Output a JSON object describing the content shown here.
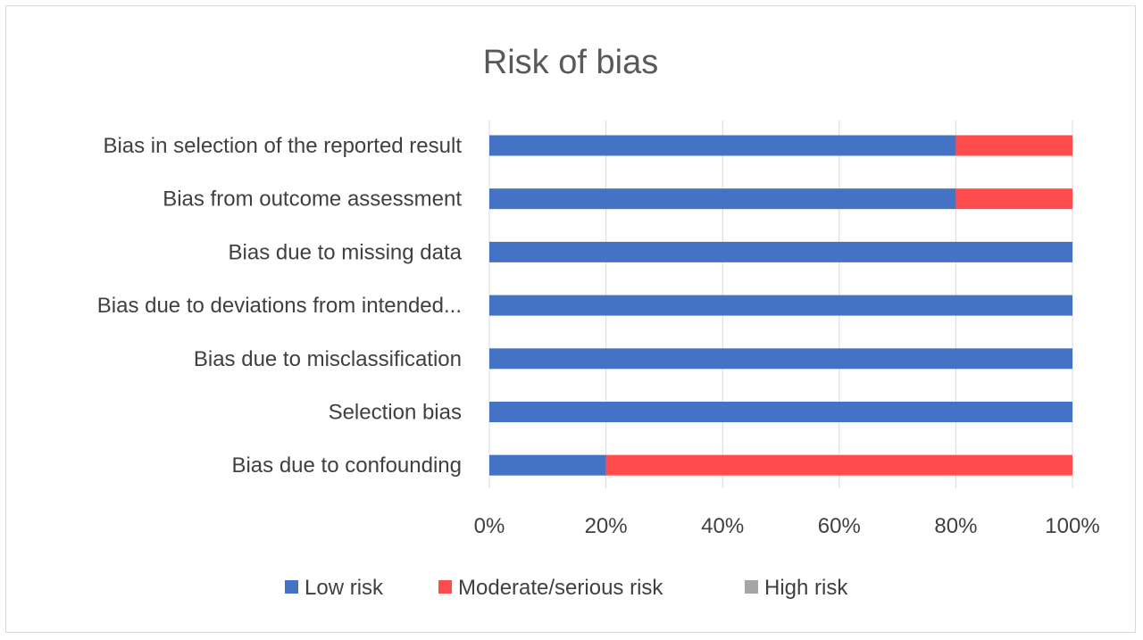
{
  "chart_data": {
    "type": "bar",
    "orientation": "horizontal",
    "stacked": true,
    "title": "Risk of bias",
    "categories": [
      "Bias in selection of the reported result",
      "Bias from outcome assessment",
      "Bias due to missing data",
      "Bias due to deviations from intended...",
      "Bias due to misclassification",
      "Selection bias",
      "Bias due to confounding"
    ],
    "series": [
      {
        "name": "Low risk",
        "color": "#4472c4",
        "values": [
          80,
          80,
          100,
          100,
          100,
          100,
          20
        ]
      },
      {
        "name": "Moderate/serious risk",
        "color": "#ff4b4b",
        "values": [
          20,
          20,
          0,
          0,
          0,
          0,
          80
        ]
      },
      {
        "name": "High risk",
        "color": "#a5a5a5",
        "values": [
          0,
          0,
          0,
          0,
          0,
          0,
          0
        ]
      }
    ],
    "xlim": [
      0,
      100
    ],
    "xticks": [
      "0%",
      "20%",
      "40%",
      "60%",
      "80%",
      "100%"
    ],
    "grid": true,
    "legend_position": "bottom"
  }
}
